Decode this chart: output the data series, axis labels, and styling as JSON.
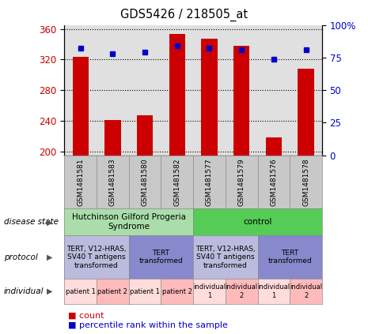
{
  "title": "GDS5426 / 218505_at",
  "samples": [
    "GSM1481581",
    "GSM1481583",
    "GSM1481580",
    "GSM1481582",
    "GSM1481577",
    "GSM1481579",
    "GSM1481576",
    "GSM1481578"
  ],
  "counts": [
    323,
    241,
    247,
    353,
    347,
    338,
    218,
    308
  ],
  "percentiles": [
    82,
    78,
    79,
    84,
    82,
    81,
    74,
    81
  ],
  "ylim_left": [
    195,
    365
  ],
  "ylim_right": [
    0,
    100
  ],
  "yticks_left": [
    200,
    240,
    280,
    320,
    360
  ],
  "yticks_right": [
    0,
    25,
    50,
    75,
    100
  ],
  "bar_color": "#cc0000",
  "dot_color": "#0000cc",
  "plot_bg_color": "#e0e0e0",
  "sample_box_color": "#c8c8c8",
  "disease_state_groups": [
    {
      "label": "Hutchinson Gilford Progeria\nSyndrome",
      "start": 0,
      "end": 4,
      "color": "#aaddaa"
    },
    {
      "label": "control",
      "start": 4,
      "end": 8,
      "color": "#55cc55"
    }
  ],
  "protocol_groups": [
    {
      "label": "TERT, V12-HRAS,\nSV40 T antigens\ntransformed",
      "start": 0,
      "end": 2,
      "color": "#bbbbdd"
    },
    {
      "label": "TERT\ntransformed",
      "start": 2,
      "end": 4,
      "color": "#8888cc"
    },
    {
      "label": "TERT, V12-HRAS,\nSV40 T antigens\ntransformed",
      "start": 4,
      "end": 6,
      "color": "#bbbbdd"
    },
    {
      "label": "TERT\ntransformed",
      "start": 6,
      "end": 8,
      "color": "#8888cc"
    }
  ],
  "individual_groups": [
    {
      "label": "patient 1",
      "start": 0,
      "end": 1,
      "color": "#ffdddd"
    },
    {
      "label": "patient 2",
      "start": 1,
      "end": 2,
      "color": "#ffbbbb"
    },
    {
      "label": "patient 1",
      "start": 2,
      "end": 3,
      "color": "#ffdddd"
    },
    {
      "label": "patient 2",
      "start": 3,
      "end": 4,
      "color": "#ffbbbb"
    },
    {
      "label": "individual\n1",
      "start": 4,
      "end": 5,
      "color": "#ffdddd"
    },
    {
      "label": "individual\n2",
      "start": 5,
      "end": 6,
      "color": "#ffbbbb"
    },
    {
      "label": "individual\n1",
      "start": 6,
      "end": 7,
      "color": "#ffdddd"
    },
    {
      "label": "individual\n2",
      "start": 7,
      "end": 8,
      "color": "#ffbbbb"
    }
  ],
  "row_labels": [
    "disease state",
    "protocol",
    "individual"
  ],
  "fig_width": 4.65,
  "fig_height": 4.23,
  "dpi": 100
}
